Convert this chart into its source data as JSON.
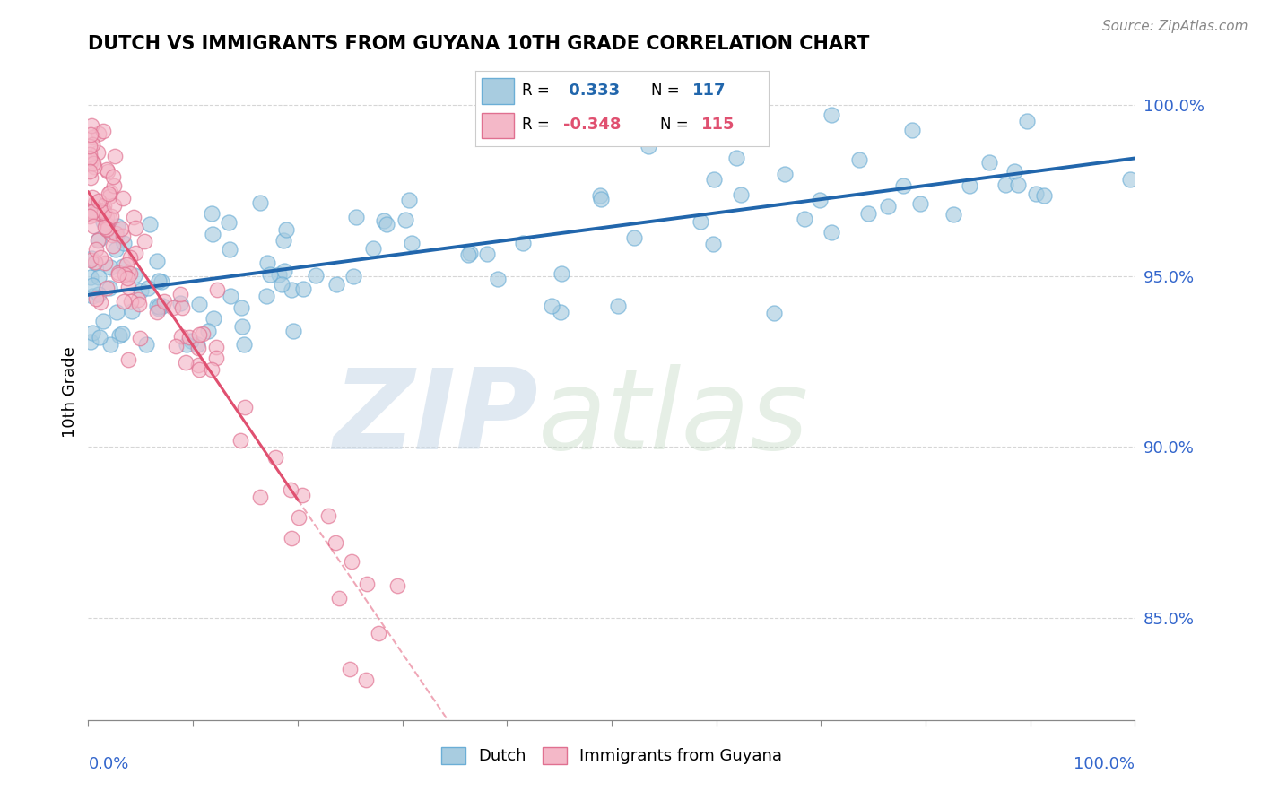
{
  "title": "DUTCH VS IMMIGRANTS FROM GUYANA 10TH GRADE CORRELATION CHART",
  "source": "Source: ZipAtlas.com",
  "ylabel": "10th Grade",
  "R_blue": 0.333,
  "N_blue": 117,
  "R_pink": -0.348,
  "N_pink": 115,
  "blue_color": "#a8cce0",
  "blue_edge_color": "#6baed6",
  "blue_line_color": "#2166ac",
  "pink_color": "#f4b8c8",
  "pink_edge_color": "#e07090",
  "pink_line_color": "#e05070",
  "background_color": "#ffffff",
  "xmin": 0.0,
  "xmax": 100.0,
  "ymin": 82.0,
  "ymax": 101.2,
  "right_yticks": [
    85.0,
    90.0,
    95.0,
    100.0
  ],
  "legend_blue_label": "Dutch",
  "legend_pink_label": "Immigrants from Guyana",
  "watermark_zip_color": "#d0d8e8",
  "watermark_atlas_color": "#d8e4d0"
}
